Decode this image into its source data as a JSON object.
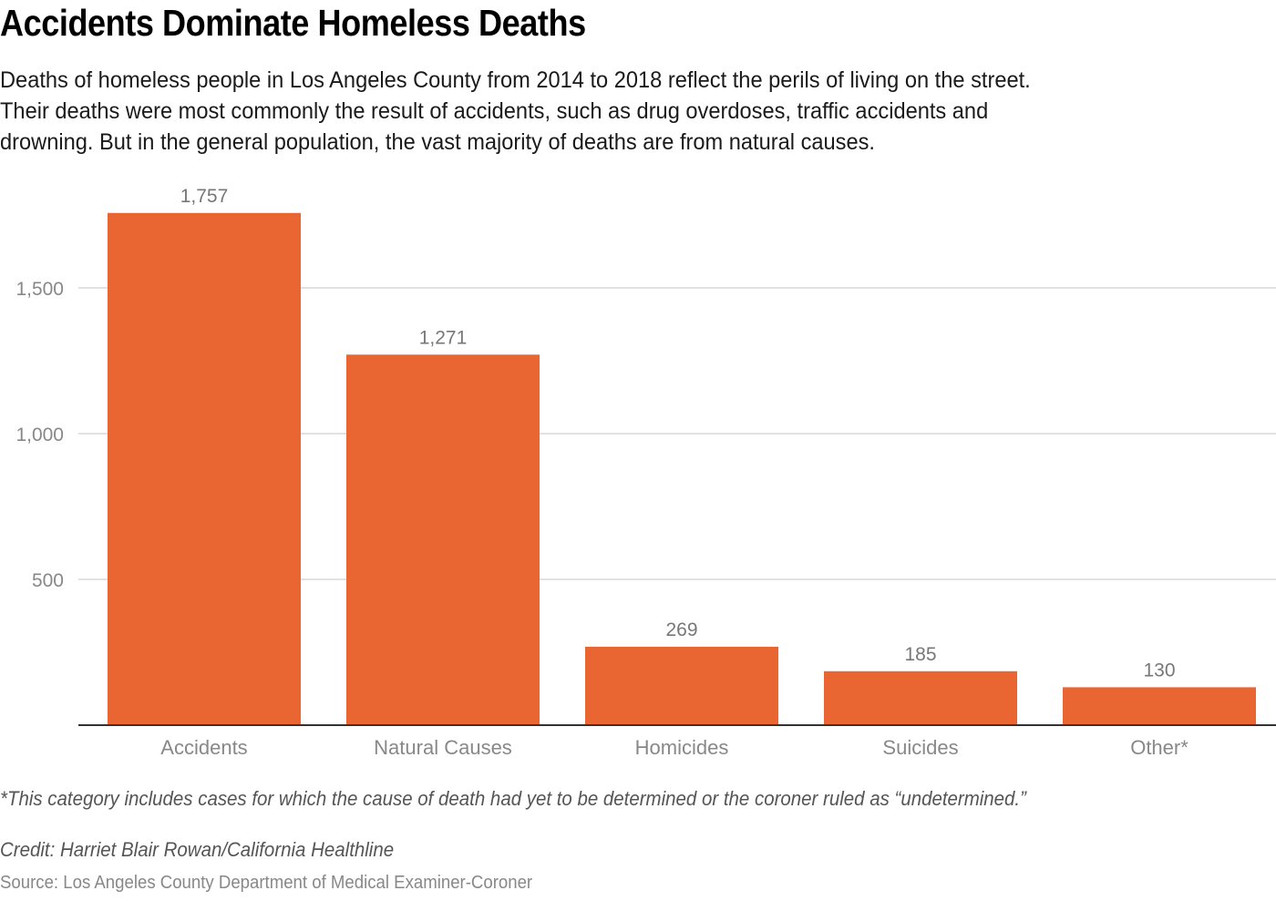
{
  "header": {
    "title": "Accidents Dominate Homeless Deaths",
    "subtitle_lines": [
      "Deaths of homeless people in Los Angeles County from 2014 to 2018 reflect the perils of living on the street.",
      "Their deaths were most commonly the result of accidents, such as drug overdoses, traffic accidents and",
      "drowning. But in the general population, the vast majority of deaths are from natural causes."
    ]
  },
  "chart_data": {
    "type": "bar",
    "title": "Accidents Dominate Homeless Deaths",
    "xlabel": "",
    "ylabel": "",
    "categories": [
      "Accidents",
      "Natural Causes",
      "Homicides",
      "Suicides",
      "Other*"
    ],
    "values": [
      1757,
      1271,
      269,
      185,
      130
    ],
    "data_labels": [
      "1,757",
      "1,271",
      "269",
      "185",
      "130"
    ],
    "ylim": [
      0,
      1800
    ],
    "yticks": [
      500,
      1000,
      1500
    ],
    "ytick_labels": [
      "500",
      "1,000",
      "1,500"
    ],
    "grid": true,
    "legend": "none",
    "bar_color": "#e96532"
  },
  "footer": {
    "note": "*This category includes cases for which the cause of death had yet to be determined or the coroner ruled as “undetermined.”",
    "credit": "Credit: Harriet Blair Rowan/California Healthline",
    "source": "Source: Los Angeles County Department of Medical Examiner-Coroner"
  }
}
